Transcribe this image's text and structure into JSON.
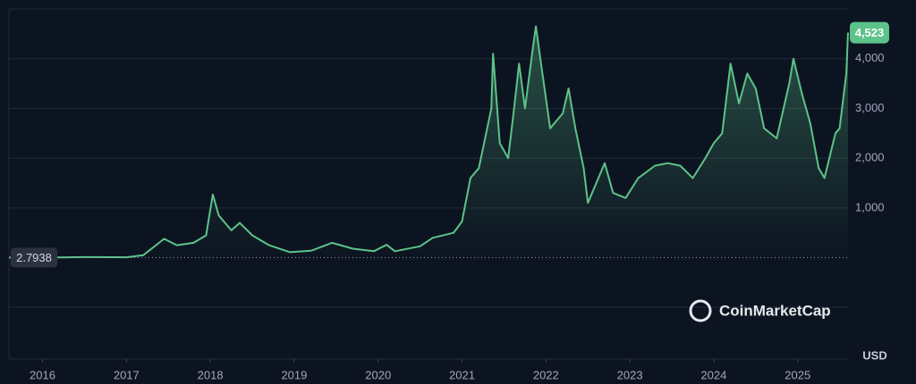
{
  "chart_data": {
    "type": "area",
    "x": [
      2015.6,
      2016.0,
      2016.5,
      2017.0,
      2017.2,
      2017.45,
      2017.6,
      2017.8,
      2017.95,
      2018.03,
      2018.1,
      2018.25,
      2018.35,
      2018.5,
      2018.7,
      2018.95,
      2019.2,
      2019.45,
      2019.7,
      2019.95,
      2020.1,
      2020.2,
      2020.5,
      2020.65,
      2020.9,
      2021.0,
      2021.1,
      2021.2,
      2021.35,
      2021.37,
      2021.45,
      2021.55,
      2021.62,
      2021.68,
      2021.75,
      2021.85,
      2021.88,
      2021.95,
      2022.05,
      2022.2,
      2022.27,
      2022.35,
      2022.45,
      2022.5,
      2022.6,
      2022.7,
      2022.8,
      2022.95,
      2023.1,
      2023.3,
      2023.45,
      2023.6,
      2023.75,
      2023.9,
      2024.0,
      2024.1,
      2024.2,
      2024.3,
      2024.4,
      2024.5,
      2024.6,
      2024.75,
      2024.9,
      2024.95,
      2025.05,
      2025.15,
      2025.25,
      2025.32,
      2025.45,
      2025.5,
      2025.58,
      2025.6
    ],
    "series": [
      {
        "color": "#5cc389",
        "values": [
          2.7938,
          1,
          12,
          8,
          50,
          380,
          250,
          300,
          450,
          1270,
          850,
          550,
          700,
          450,
          250,
          110,
          140,
          300,
          180,
          130,
          260,
          130,
          230,
          400,
          500,
          730,
          1600,
          1800,
          3000,
          4100,
          2300,
          2000,
          3000,
          3900,
          3000,
          4300,
          4650,
          3800,
          2600,
          2900,
          3400,
          2600,
          1800,
          1100,
          1500,
          1900,
          1300,
          1200,
          1600,
          1850,
          1900,
          1850,
          1600,
          2000,
          2300,
          2500,
          3900,
          3100,
          3700,
          3400,
          2600,
          2400,
          3500,
          4000,
          3300,
          2700,
          1800,
          1600,
          2500,
          2600,
          3700,
          4523
        ]
      }
    ],
    "xlim": [
      2015.6,
      2025.6
    ],
    "xticks": [
      2016,
      2017,
      2018,
      2019,
      2020,
      2021,
      2022,
      2023,
      2024,
      2025
    ],
    "ylim": [
      -2000,
      5000
    ],
    "yticks": [
      {
        "value": 1000,
        "label": "1,000"
      },
      {
        "value": 2000,
        "label": "2,000"
      },
      {
        "value": 3000,
        "label": "3,000"
      },
      {
        "value": 4000,
        "label": "4,000"
      }
    ],
    "grid": true,
    "annotations": [
      {
        "text": "4,523",
        "value": 4523
      },
      {
        "text": "2.7938",
        "value": 2.7938
      }
    ],
    "unit": "USD",
    "watermark": "CoinMarketCap"
  }
}
